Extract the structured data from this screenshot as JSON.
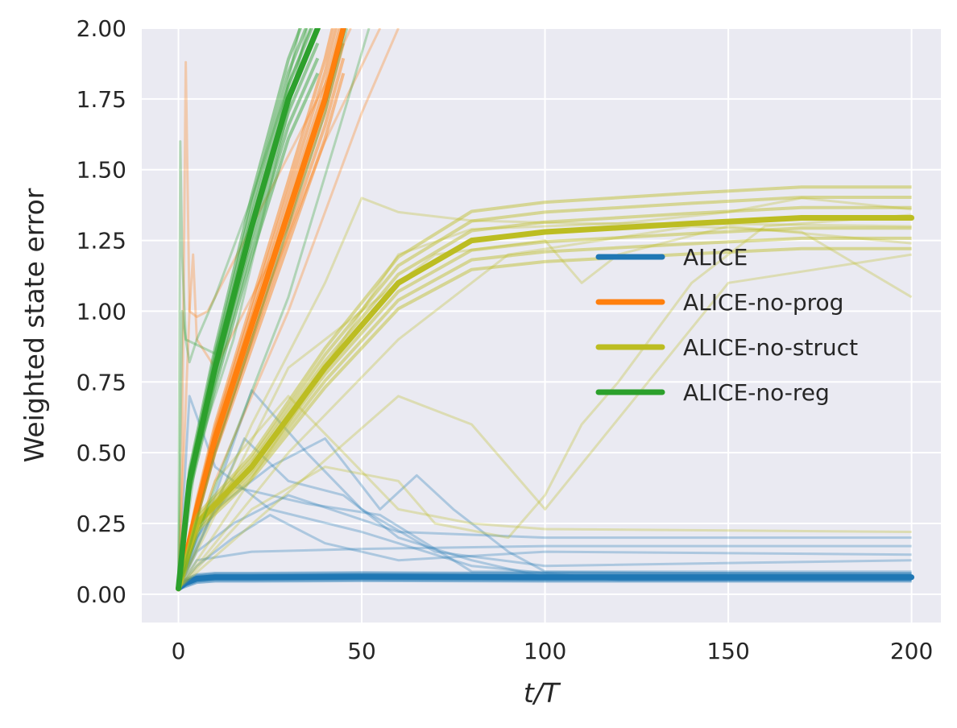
{
  "chart_data": {
    "type": "line",
    "title": "",
    "xlabel": "t/T",
    "ylabel": "Weighted state error",
    "xlim": [
      -10,
      208
    ],
    "ylim": [
      -0.1,
      2.0
    ],
    "xticks": [
      0,
      50,
      100,
      150,
      200
    ],
    "xtick_labels": [
      "0",
      "50",
      "100",
      "150",
      "200"
    ],
    "yticks": [
      0.0,
      0.25,
      0.5,
      0.75,
      1.0,
      1.25,
      1.5,
      1.75,
      2.0
    ],
    "ytick_labels": [
      "0.00",
      "0.25",
      "0.50",
      "0.75",
      "1.00",
      "1.25",
      "1.50",
      "1.75",
      "2.00"
    ],
    "grid": true,
    "legend_position": "center-right",
    "series": [
      {
        "name": "ALICE",
        "color": "#1f77b4",
        "mean": {
          "x": [
            0,
            2,
            5,
            10,
            20,
            50,
            100,
            150,
            200
          ],
          "y": [
            0.02,
            0.04,
            0.055,
            0.06,
            0.06,
            0.062,
            0.06,
            0.06,
            0.06
          ]
        },
        "runs": [
          {
            "x": [
              0,
              5,
              20,
              50,
              100,
              200
            ],
            "y": [
              0.02,
              0.12,
              0.15,
              0.16,
              0.17,
              0.17
            ]
          },
          {
            "x": [
              0,
              5,
              15,
              30,
              60,
              100,
              200
            ],
            "y": [
              0.02,
              0.15,
              0.25,
              0.35,
              0.22,
              0.2,
              0.2
            ]
          },
          {
            "x": [
              0,
              10,
              20,
              35,
              50,
              70,
              100,
              200
            ],
            "y": [
              0.02,
              0.35,
              0.72,
              0.5,
              0.3,
              0.15,
              0.1,
              0.12
            ]
          },
          {
            "x": [
              0,
              10,
              25,
              40,
              55,
              65,
              75,
              90,
              100,
              200
            ],
            "y": [
              0.02,
              0.3,
              0.45,
              0.55,
              0.3,
              0.42,
              0.3,
              0.15,
              0.08,
              0.08
            ]
          },
          {
            "x": [
              0,
              8,
              18,
              30,
              45,
              60,
              80,
              100,
              200
            ],
            "y": [
              0.02,
              0.25,
              0.55,
              0.4,
              0.35,
              0.2,
              0.12,
              0.06,
              0.06
            ]
          },
          {
            "x": [
              0,
              5,
              15,
              25,
              40,
              60,
              100,
              200
            ],
            "y": [
              0.02,
              0.1,
              0.2,
              0.28,
              0.18,
              0.12,
              0.15,
              0.14
            ]
          },
          {
            "x": [
              0,
              3,
              10,
              25,
              50,
              80,
              120,
              200
            ],
            "y": [
              0.02,
              0.7,
              0.45,
              0.3,
              0.22,
              0.1,
              0.05,
              0.05
            ]
          },
          {
            "x": [
              0,
              5,
              15,
              35,
              55,
              80,
              200
            ],
            "y": [
              0.02,
              0.2,
              0.38,
              0.32,
              0.28,
              0.08,
              0.07
            ]
          }
        ]
      },
      {
        "name": "ALICE-no-prog",
        "color": "#ff7f0e",
        "mean": {
          "x": [
            0,
            5,
            10,
            20,
            30,
            40,
            45
          ],
          "y": [
            0.02,
            0.3,
            0.55,
            0.95,
            1.35,
            1.75,
            2.0
          ]
        },
        "runs": [
          {
            "x": [
              0,
              1,
              2,
              3,
              5,
              8,
              20,
              40,
              47
            ],
            "y": [
              0.02,
              0.5,
              1.88,
              1.0,
              0.98,
              1.0,
              1.3,
              1.8,
              2.0
            ]
          },
          {
            "x": [
              0,
              3,
              4,
              5,
              10,
              30,
              45
            ],
            "y": [
              0.02,
              1.0,
              1.2,
              0.9,
              0.8,
              1.3,
              2.0
            ]
          },
          {
            "x": [
              0,
              10,
              30,
              50,
              60
            ],
            "y": [
              0.02,
              0.4,
              1.0,
              1.7,
              2.0
            ]
          },
          {
            "x": [
              0,
              10,
              25,
              40,
              55
            ],
            "y": [
              0.02,
              0.5,
              1.1,
              1.6,
              2.0
            ]
          }
        ]
      },
      {
        "name": "ALICE-no-struct",
        "color": "#bcbd22",
        "mean": {
          "x": [
            0,
            5,
            20,
            40,
            60,
            80,
            100,
            140,
            170,
            200
          ],
          "y": [
            0.02,
            0.25,
            0.45,
            0.8,
            1.1,
            1.25,
            1.28,
            1.31,
            1.33,
            1.33
          ]
        },
        "runs": [
          {
            "x": [
              0,
              20,
              40,
              50,
              60,
              80,
              110,
              140,
              200
            ],
            "y": [
              0.02,
              0.6,
              1.1,
              1.4,
              1.35,
              1.32,
              1.31,
              1.31,
              1.3
            ]
          },
          {
            "x": [
              0,
              10,
              30,
              45,
              60,
              80,
              100,
              200
            ],
            "y": [
              0.02,
              0.4,
              0.7,
              0.5,
              0.3,
              0.25,
              0.23,
              0.22
            ]
          },
          {
            "x": [
              0,
              20,
              40,
              60,
              70,
              90,
              100,
              110,
              120,
              140,
              160,
              200
            ],
            "y": [
              0.02,
              0.3,
              0.45,
              0.4,
              0.25,
              0.2,
              0.35,
              0.6,
              0.75,
              1.1,
              1.3,
              1.34
            ]
          },
          {
            "x": [
              0,
              30,
              50,
              70,
              100,
              110,
              120,
              150,
              200
            ],
            "y": [
              0.02,
              0.8,
              1.0,
              1.2,
              1.25,
              1.1,
              1.2,
              1.3,
              1.24
            ]
          },
          {
            "x": [
              0,
              40,
              60,
              80,
              100,
              120,
              150,
              170,
              200
            ],
            "y": [
              0.02,
              0.8,
              1.2,
              1.29,
              1.3,
              1.31,
              1.35,
              1.4,
              1.36
            ]
          },
          {
            "x": [
              0,
              30,
              60,
              90,
              140,
              170,
              200
            ],
            "y": [
              0.02,
              0.5,
              0.9,
              1.2,
              1.3,
              1.28,
              1.05
            ]
          },
          {
            "x": [
              0,
              60,
              80,
              100,
              150,
              200
            ],
            "y": [
              0.02,
              0.7,
              0.6,
              0.3,
              1.1,
              1.2
            ]
          }
        ]
      },
      {
        "name": "ALICE-no-reg",
        "color": "#2ca02c",
        "mean": {
          "x": [
            0,
            3,
            10,
            20,
            30,
            38
          ],
          "y": [
            0.02,
            0.4,
            0.8,
            1.3,
            1.75,
            2.0
          ]
        },
        "runs": [
          {
            "x": [
              0,
              1,
              2,
              3,
              5,
              10,
              20,
              30,
              36
            ],
            "y": [
              0.05,
              1.0,
              0.9,
              0.82,
              0.9,
              1.05,
              1.4,
              1.8,
              2.0
            ]
          },
          {
            "x": [
              0,
              0.5,
              1,
              2,
              10,
              25,
              33
            ],
            "y": [
              0.05,
              1.6,
              1.2,
              0.9,
              0.85,
              1.5,
              2.0
            ]
          },
          {
            "x": [
              0,
              10,
              25,
              40,
              46
            ],
            "y": [
              0.02,
              0.5,
              1.1,
              1.7,
              2.0
            ]
          },
          {
            "x": [
              0,
              5,
              15,
              28,
              35
            ],
            "y": [
              0.02,
              0.5,
              0.9,
              1.6,
              2.0
            ]
          },
          {
            "x": [
              0,
              12,
              30,
              44,
              52
            ],
            "y": [
              0.02,
              0.45,
              1.05,
              1.65,
              2.0
            ]
          }
        ]
      }
    ]
  }
}
